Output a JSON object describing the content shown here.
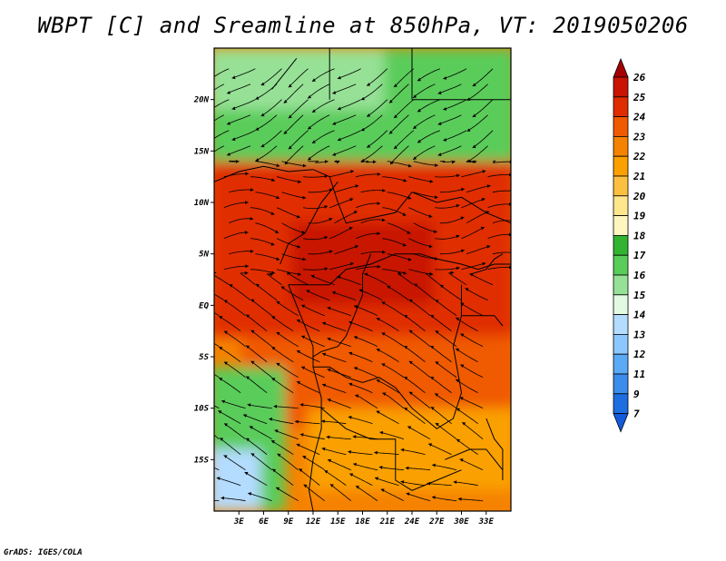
{
  "title": "WBPT [C] and Sreamline at 850hPa, VT: 2019050206",
  "credit": "GrADS: IGES/COLA",
  "map": {
    "lon_range": [
      0,
      36
    ],
    "lat_range": [
      -20,
      25
    ],
    "lat_labels": [
      {
        "lat": 20,
        "label": "20N"
      },
      {
        "lat": 15,
        "label": "15N"
      },
      {
        "lat": 10,
        "label": "10N"
      },
      {
        "lat": 5,
        "label": "5N"
      },
      {
        "lat": 0,
        "label": "EQ"
      },
      {
        "lat": -5,
        "label": "5S"
      },
      {
        "lat": -10,
        "label": "10S"
      },
      {
        "lat": -15,
        "label": "15S"
      }
    ],
    "lon_labels": [
      {
        "lon": 3,
        "label": "3E"
      },
      {
        "lon": 6,
        "label": "6E"
      },
      {
        "lon": 9,
        "label": "9E"
      },
      {
        "lon": 12,
        "label": "12E"
      },
      {
        "lon": 15,
        "label": "15E"
      },
      {
        "lon": 18,
        "label": "18E"
      },
      {
        "lon": 21,
        "label": "21E"
      },
      {
        "lon": 24,
        "label": "24E"
      },
      {
        "lon": 27,
        "label": "27E"
      },
      {
        "lon": 30,
        "label": "30E"
      },
      {
        "lon": 33,
        "label": "33E"
      }
    ]
  },
  "colorbar": {
    "levels": [
      {
        "label": "26",
        "color": "#a50000"
      },
      {
        "label": "25",
        "color": "#c81400"
      },
      {
        "label": "24",
        "color": "#e02d00"
      },
      {
        "label": "23",
        "color": "#f05a00"
      },
      {
        "label": "22",
        "color": "#f58200"
      },
      {
        "label": "21",
        "color": "#faa000"
      },
      {
        "label": "20",
        "color": "#fcc040"
      },
      {
        "label": "19",
        "color": "#fde68c"
      },
      {
        "label": "18",
        "color": "#fff5be"
      },
      {
        "label": "17",
        "color": "#32b432"
      },
      {
        "label": "16",
        "color": "#5acc5a"
      },
      {
        "label": "15",
        "color": "#96e196"
      },
      {
        "label": "14",
        "color": "#e1fae1"
      },
      {
        "label": "13",
        "color": "#b4dcff"
      },
      {
        "label": "12",
        "color": "#8cc8ff"
      },
      {
        "label": "11",
        "color": "#5aaaf5"
      },
      {
        "label": "9",
        "color": "#3c8ceb"
      },
      {
        "label": "7",
        "color": "#1e6ee1"
      }
    ],
    "bottom_color": "#145adc"
  },
  "regions": [
    {
      "name": "north-green",
      "color": "#5acc5a",
      "lat": [
        14,
        25
      ],
      "lon": [
        0,
        36
      ]
    },
    {
      "name": "north-lightgreen",
      "color": "#96e196",
      "lat": [
        19,
        25
      ],
      "lon": [
        0,
        20
      ]
    },
    {
      "name": "sahel-orange",
      "color": "#e02d00",
      "lat": [
        -3,
        14
      ],
      "lon": [
        0,
        36
      ]
    },
    {
      "name": "core-red",
      "color": "#c81400",
      "lat": [
        0,
        8
      ],
      "lon": [
        10,
        26
      ]
    },
    {
      "name": "south-orange",
      "color": "#f05a00",
      "lat": [
        -12,
        -3
      ],
      "lon": [
        4,
        36
      ]
    },
    {
      "name": "south-amber",
      "color": "#faa000",
      "lat": [
        -18,
        -10
      ],
      "lon": [
        12,
        36
      ]
    },
    {
      "name": "southwest-green",
      "color": "#5acc5a",
      "lat": [
        -20,
        -6
      ],
      "lon": [
        0,
        8
      ]
    },
    {
      "name": "southwest-blue",
      "color": "#b4dcff",
      "lat": [
        -20,
        -14
      ],
      "lon": [
        0,
        5
      ]
    }
  ]
}
